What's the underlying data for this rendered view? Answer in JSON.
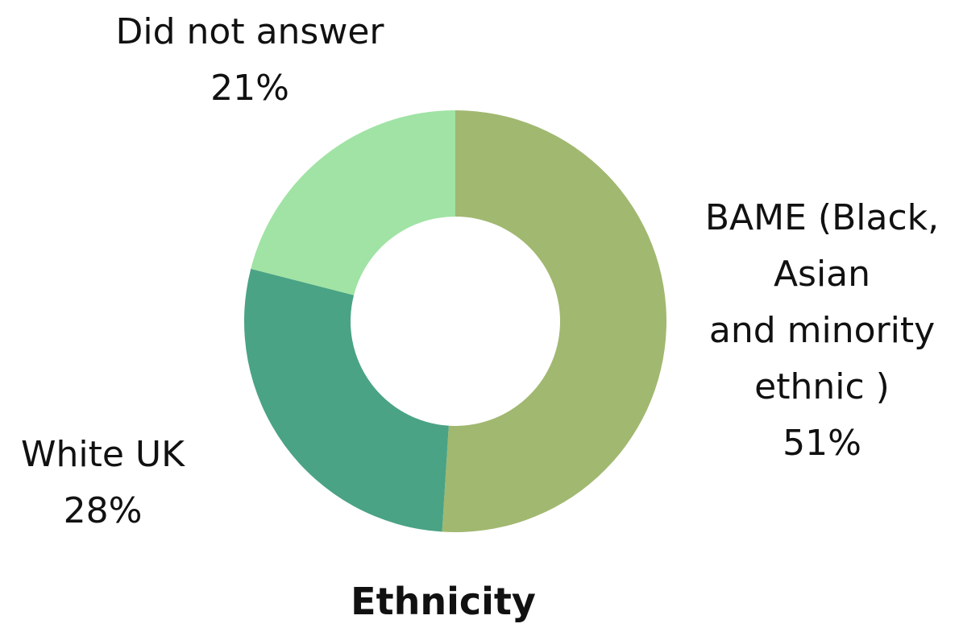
{
  "chart_data": {
    "type": "pie",
    "donut": true,
    "title": "Ethnicity",
    "slices": [
      {
        "label_lines": [
          "BAME (Black,",
          "Asian",
          "and minority",
          "ethnic )"
        ],
        "value": 51,
        "value_label": "51%",
        "color": "#a1b870"
      },
      {
        "label_lines": [
          "White UK"
        ],
        "value": 28,
        "value_label": "28%",
        "color": "#4aa384"
      },
      {
        "label_lines": [
          "Did not answer"
        ],
        "value": 21,
        "value_label": "21%",
        "color": "#a0e3a4"
      }
    ],
    "start_angle": "12 o'clock",
    "direction": "clockwise",
    "legend": "none",
    "labels_placement": "outside"
  }
}
